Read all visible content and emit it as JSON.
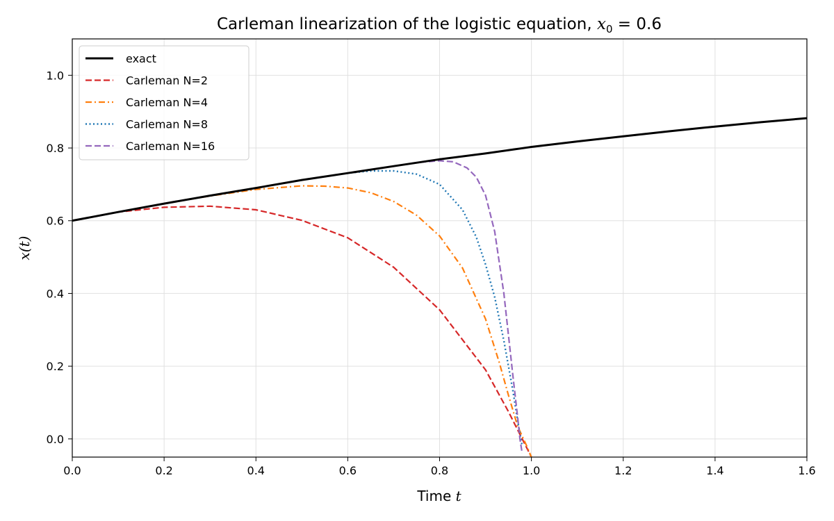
{
  "chart_data": {
    "type": "line",
    "title": "Carleman linearization of the logistic equation, x₀ = 0.6",
    "title_main": "Carleman linearization of the logistic equation, ",
    "title_math_var": "x",
    "title_math_sub": "0",
    "title_math_rest": " = 0.6",
    "xlabel": "Time t",
    "xlabel_main": "Time ",
    "xlabel_var": "t",
    "ylabel": "x(t)",
    "xlim": [
      0.0,
      1.6
    ],
    "ylim": [
      -0.05,
      1.1
    ],
    "x_ticks": [
      0.0,
      0.2,
      0.4,
      0.6,
      0.8,
      1.0,
      1.2,
      1.4,
      1.6
    ],
    "x_tick_labels": [
      "0.0",
      "0.2",
      "0.4",
      "0.6",
      "0.8",
      "1.0",
      "1.2",
      "1.4",
      "1.6"
    ],
    "y_ticks": [
      0.0,
      0.2,
      0.4,
      0.6,
      0.8,
      1.0
    ],
    "y_tick_labels": [
      "0.0",
      "0.2",
      "0.4",
      "0.6",
      "0.8",
      "1.0"
    ],
    "grid": true,
    "legend_position": "top-left",
    "series": [
      {
        "name": "exact",
        "color": "#000000",
        "style": "solid",
        "x": [
          0.0,
          0.1,
          0.2,
          0.3,
          0.4,
          0.5,
          0.6,
          0.7,
          0.8,
          0.9,
          1.0,
          1.1,
          1.2,
          1.3,
          1.4,
          1.5,
          1.6
        ],
        "y": [
          0.6,
          0.624,
          0.647,
          0.669,
          0.69,
          0.712,
          0.731,
          0.75,
          0.769,
          0.785,
          0.803,
          0.818,
          0.832,
          0.846,
          0.859,
          0.871,
          0.882
        ]
      },
      {
        "name": "Carleman N=2",
        "color": "#d62728",
        "style": "dashed",
        "x": [
          0.0,
          0.1,
          0.2,
          0.3,
          0.4,
          0.5,
          0.6,
          0.7,
          0.8,
          0.9,
          0.95,
          1.0
        ],
        "y": [
          0.6,
          0.624,
          0.637,
          0.64,
          0.63,
          0.601,
          0.553,
          0.472,
          0.355,
          0.19,
          0.075,
          -0.05
        ]
      },
      {
        "name": "Carleman N=4",
        "color": "#ff7f0e",
        "style": "dashdot",
        "x": [
          0.0,
          0.1,
          0.2,
          0.3,
          0.4,
          0.5,
          0.55,
          0.6,
          0.65,
          0.7,
          0.75,
          0.8,
          0.85,
          0.9,
          0.93,
          0.95,
          0.97,
          0.99,
          1.0
        ],
        "y": [
          0.6,
          0.624,
          0.647,
          0.668,
          0.686,
          0.696,
          0.695,
          0.69,
          0.677,
          0.653,
          0.615,
          0.558,
          0.47,
          0.33,
          0.21,
          0.12,
          0.035,
          -0.02,
          -0.05
        ]
      },
      {
        "name": "Carleman N=8",
        "color": "#1f77b4",
        "style": "dotted",
        "x": [
          0.0,
          0.1,
          0.2,
          0.3,
          0.4,
          0.5,
          0.6,
          0.65,
          0.7,
          0.75,
          0.8,
          0.85,
          0.88,
          0.9,
          0.92,
          0.94,
          0.96,
          0.97,
          0.98
        ],
        "y": [
          0.6,
          0.624,
          0.647,
          0.669,
          0.69,
          0.712,
          0.731,
          0.737,
          0.737,
          0.728,
          0.7,
          0.63,
          0.555,
          0.48,
          0.39,
          0.27,
          0.13,
          0.05,
          -0.02
        ]
      },
      {
        "name": "Carleman N=16",
        "color": "#9467bd",
        "style": "dashed",
        "x": [
          0.0,
          0.1,
          0.2,
          0.3,
          0.4,
          0.5,
          0.6,
          0.7,
          0.75,
          0.8,
          0.83,
          0.86,
          0.88,
          0.9,
          0.92,
          0.94,
          0.96,
          0.97,
          0.975,
          0.98,
          0.98
        ],
        "y": [
          0.6,
          0.624,
          0.647,
          0.669,
          0.69,
          0.712,
          0.731,
          0.75,
          0.76,
          0.765,
          0.762,
          0.745,
          0.72,
          0.67,
          0.57,
          0.4,
          0.17,
          0.06,
          0.0,
          -0.04,
          -0.04
        ]
      }
    ]
  }
}
